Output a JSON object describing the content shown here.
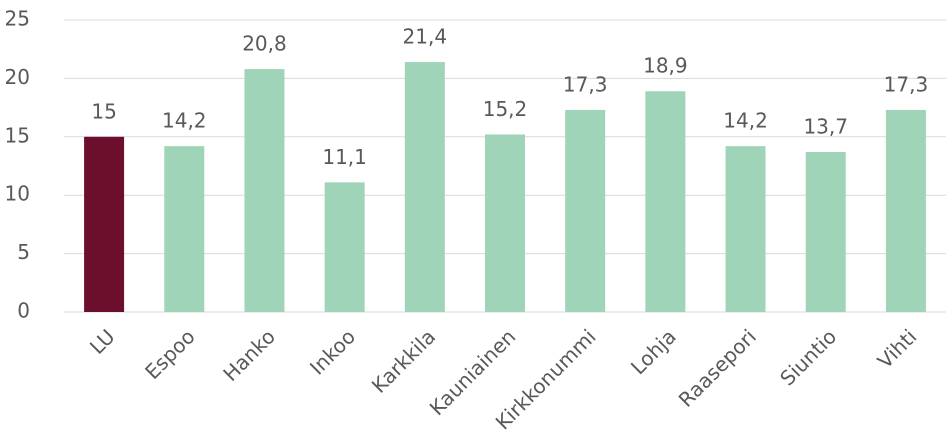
{
  "chart_data": {
    "type": "bar",
    "categories": [
      "LU",
      "Espoo",
      "Hanko",
      "Inkoo",
      "Karkkila",
      "Kauniainen",
      "Kirkkonummi",
      "Lohja",
      "Raasepori",
      "Siuntio",
      "Vihti"
    ],
    "values": [
      15,
      14.2,
      20.8,
      11.1,
      21.4,
      15.2,
      17.3,
      18.9,
      14.2,
      13.7,
      17.3
    ],
    "value_labels": [
      "15",
      "14,2",
      "20,8",
      "11,1",
      "21,4",
      "15,2",
      "17,3",
      "18,9",
      "14,2",
      "13,7",
      "17,3"
    ],
    "colors": [
      "#6c0f2c",
      "#a0d4b8",
      "#a0d4b8",
      "#a0d4b8",
      "#a0d4b8",
      "#a0d4b8",
      "#a0d4b8",
      "#a0d4b8",
      "#a0d4b8",
      "#a0d4b8",
      "#a0d4b8"
    ],
    "ylim": [
      0,
      25
    ],
    "yticks": [
      0,
      5,
      10,
      15,
      20,
      25
    ],
    "grid": true
  }
}
